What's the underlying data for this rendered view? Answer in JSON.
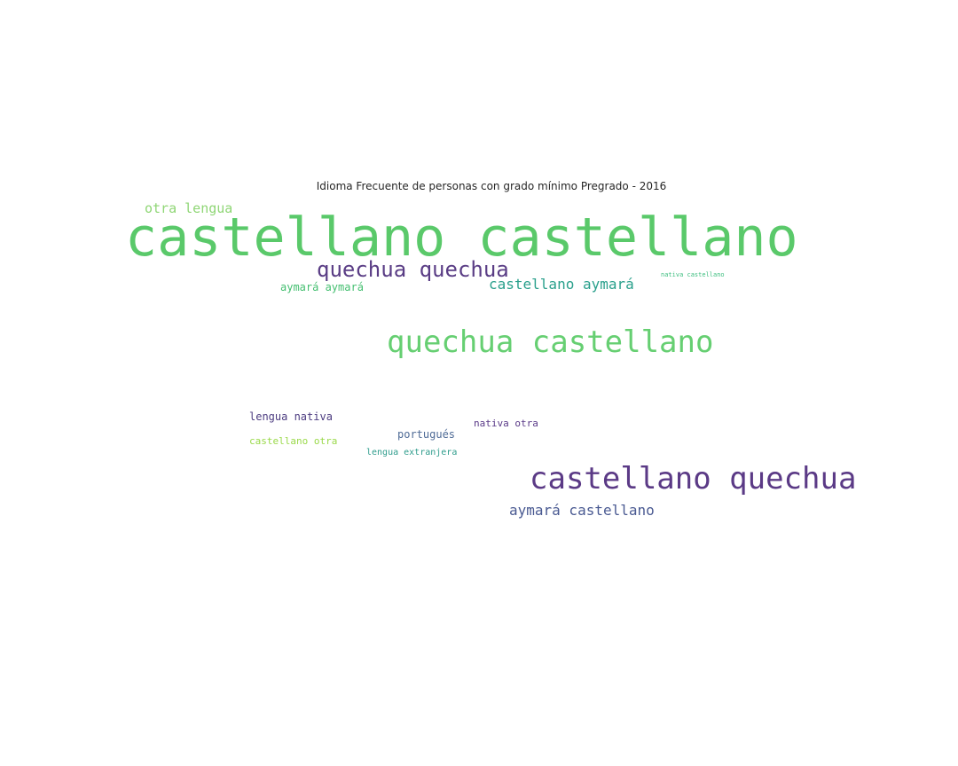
{
  "title": "Idioma Frecuente de personas con grado mínimo Pregrado - 2016",
  "words": [
    {
      "text": "castellano castellano",
      "color": "#5ac96a"
    },
    {
      "text": "castellano quechua",
      "color": "#5b3a86"
    },
    {
      "text": "quechua castellano",
      "color": "#66cf72"
    },
    {
      "text": "quechua quechua",
      "color": "#5a3d85"
    },
    {
      "text": "castellano aymará",
      "color": "#2aa08c"
    },
    {
      "text": "aymará castellano",
      "color": "#4a5a92"
    },
    {
      "text": "otra lengua",
      "color": "#8fd675"
    },
    {
      "text": "aymará aymará",
      "color": "#44bf70"
    },
    {
      "text": "lengua nativa",
      "color": "#4c3c80"
    },
    {
      "text": "castellano otra",
      "color": "#9ad94a"
    },
    {
      "text": "portugués",
      "color": "#4f6b96"
    },
    {
      "text": "nativa otra",
      "color": "#5a3a88"
    },
    {
      "text": "lengua extranjera",
      "color": "#2e9c8c"
    },
    {
      "text": "nativa castellano",
      "color": "#3fbf80"
    }
  ]
}
